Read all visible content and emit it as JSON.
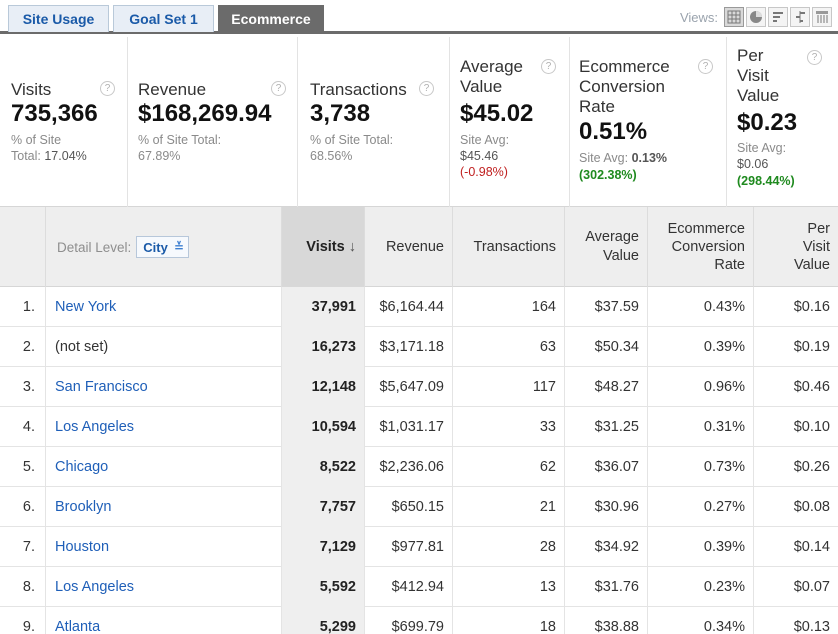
{
  "tabs": [
    "Site Usage",
    "Goal Set 1",
    "Ecommerce"
  ],
  "views_label": "Views:",
  "views": [
    "table-view",
    "pie-view",
    "bar-view",
    "comparison-view",
    "pivot-view"
  ],
  "summary": [
    {
      "title_lines": [
        "Visits"
      ],
      "value": "735,366",
      "sub_lines": [
        "% of Site"
      ],
      "sub_last_prefix": "Total: ",
      "sub_last_value": "17.04%"
    },
    {
      "title_lines": [
        "Revenue"
      ],
      "value": "$168,269.94",
      "sub_lines": [
        "% of Site Total:",
        "67.89%"
      ]
    },
    {
      "title_lines": [
        "Transactions"
      ],
      "value": "3,738",
      "sub_lines": [
        "% of Site Total:",
        "68.56%"
      ]
    },
    {
      "title_lines": [
        "Average",
        "Value"
      ],
      "value": "$45.02",
      "sub_lines": [
        "Site Avg:",
        "$45.46"
      ],
      "delta": "(-0.98%)"
    },
    {
      "title_lines": [
        "Ecommerce",
        "Conversion",
        "Rate"
      ],
      "value": "0.51%",
      "sub_prefix": "Site Avg: ",
      "sub_value": "0.13%",
      "delta": "(302.38%)"
    },
    {
      "title_lines": [
        "Per",
        "Visit",
        "Value"
      ],
      "value": "$0.23",
      "sub_lines": [
        "Site Avg:",
        "$0.06"
      ],
      "delta": "(298.44%)"
    }
  ],
  "table": {
    "detail_level_label": "Detail Level:",
    "detail_level_value": "City",
    "columns": {
      "visits": "Visits",
      "sort_arrow": "↓",
      "revenue": "Revenue",
      "transactions": "Transactions",
      "avg_value": [
        "Average",
        "Value"
      ],
      "conv_rate": [
        "Ecommerce",
        "Conversion",
        "Rate"
      ],
      "per_visit": [
        "Per",
        "Visit",
        "Value"
      ]
    },
    "rows": [
      {
        "n": "1.",
        "city": "New York",
        "link": true,
        "visits": "37,991",
        "revenue": "$6,164.44",
        "tx": "164",
        "avg": "$37.59",
        "conv": "0.43%",
        "pvv": "$0.16"
      },
      {
        "n": "2.",
        "city": "(not set)",
        "link": false,
        "visits": "16,273",
        "revenue": "$3,171.18",
        "tx": "63",
        "avg": "$50.34",
        "conv": "0.39%",
        "pvv": "$0.19"
      },
      {
        "n": "3.",
        "city": "San Francisco",
        "link": true,
        "visits": "12,148",
        "revenue": "$5,647.09",
        "tx": "117",
        "avg": "$48.27",
        "conv": "0.96%",
        "pvv": "$0.46"
      },
      {
        "n": "4.",
        "city": "Los Angeles",
        "link": true,
        "visits": "10,594",
        "revenue": "$1,031.17",
        "tx": "33",
        "avg": "$31.25",
        "conv": "0.31%",
        "pvv": "$0.10"
      },
      {
        "n": "5.",
        "city": "Chicago",
        "link": true,
        "visits": "8,522",
        "revenue": "$2,236.06",
        "tx": "62",
        "avg": "$36.07",
        "conv": "0.73%",
        "pvv": "$0.26"
      },
      {
        "n": "6.",
        "city": "Brooklyn",
        "link": true,
        "visits": "7,757",
        "revenue": "$650.15",
        "tx": "21",
        "avg": "$30.96",
        "conv": "0.27%",
        "pvv": "$0.08"
      },
      {
        "n": "7.",
        "city": "Houston",
        "link": true,
        "visits": "7,129",
        "revenue": "$977.81",
        "tx": "28",
        "avg": "$34.92",
        "conv": "0.39%",
        "pvv": "$0.14"
      },
      {
        "n": "8.",
        "city": "Los Angeles",
        "link": true,
        "visits": "5,592",
        "revenue": "$412.94",
        "tx": "13",
        "avg": "$31.76",
        "conv": "0.23%",
        "pvv": "$0.07"
      },
      {
        "n": "9.",
        "city": "Atlanta",
        "link": true,
        "visits": "5,299",
        "revenue": "$699.79",
        "tx": "18",
        "avg": "$38.88",
        "conv": "0.34%",
        "pvv": "$0.13"
      }
    ]
  },
  "colors": {
    "link": "#1f5fb8",
    "negative": "#c02020",
    "positive": "#1f8a1f",
    "active_tab": "#6b6b6b"
  }
}
